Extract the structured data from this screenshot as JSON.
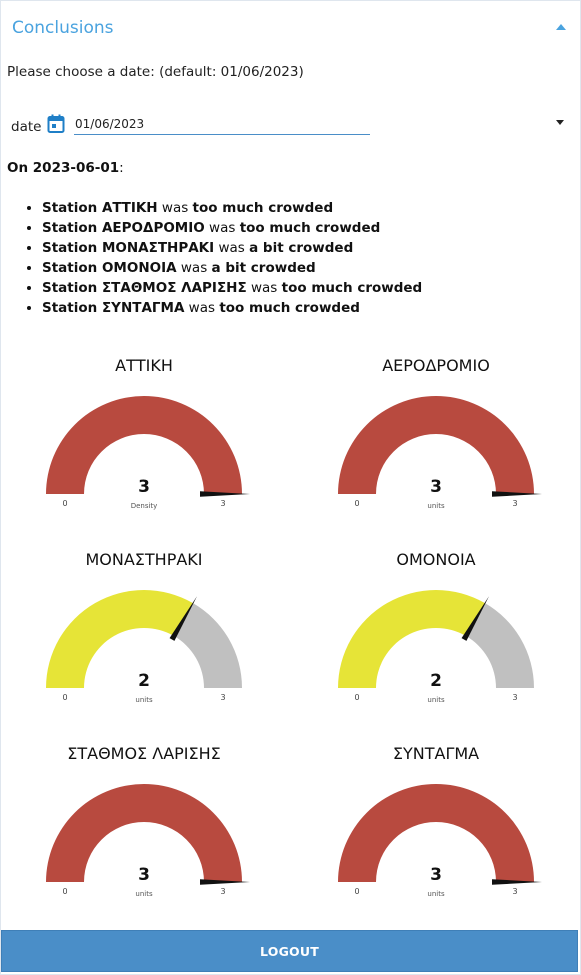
{
  "colors": {
    "accent": "#4aa3df",
    "button": "#4a8ec8",
    "red": "#b84a3f",
    "yellow": "#e6e437",
    "grey": "#c0c0c0"
  },
  "panel": {
    "title": "Conclusions",
    "collapse_icon": "chevron-up-icon"
  },
  "prompt": "Please choose a date: (default: 01/06/2023)",
  "date_field": {
    "label": "date",
    "value": "01/06/2023",
    "icon": "calendar-icon"
  },
  "summary": {
    "on_prefix": "On 2023-06-01",
    "on_suffix": ":",
    "items": [
      {
        "station": "Station ΑΤΤΙΚΗ",
        "was": " was ",
        "level": "too much crowded"
      },
      {
        "station": "Station ΑΕΡΟΔΡΟΜΙΟ",
        "was": " was ",
        "level": "too much crowded"
      },
      {
        "station": "Station ΜΟΝΑΣΤΗΡΑΚΙ",
        "was": " was ",
        "level": "a bit crowded"
      },
      {
        "station": "Station ΟΜΟΝΟΙΑ",
        "was": " was ",
        "level": "a bit crowded"
      },
      {
        "station": "Station ΣΤΑΘΜΟΣ ΛΑΡΙΣΗΣ",
        "was": " was ",
        "level": "too much crowded"
      },
      {
        "station": "Station ΣΥΝΤΑΓΜΑ",
        "was": " was ",
        "level": "too much crowded"
      }
    ]
  },
  "gauges": [
    {
      "title": "ΑΤΤΙΚΗ",
      "value": 3,
      "min": 0,
      "max": 3,
      "unit": "Density",
      "color": "#b84a3f"
    },
    {
      "title": "ΑΕΡΟΔΡΟΜΙΟ",
      "value": 3,
      "min": 0,
      "max": 3,
      "unit": "units",
      "color": "#b84a3f"
    },
    {
      "title": "ΜΟΝΑΣΤΗΡΑΚΙ",
      "value": 2,
      "min": 0,
      "max": 3,
      "unit": "units",
      "color": "#e6e437"
    },
    {
      "title": "ΟΜΟΝΟΙΑ",
      "value": 2,
      "min": 0,
      "max": 3,
      "unit": "units",
      "color": "#e6e437"
    },
    {
      "title": "ΣΤΑΘΜΟΣ ΛΑΡΙΣΗΣ",
      "value": 3,
      "min": 0,
      "max": 3,
      "unit": "units",
      "color": "#b84a3f"
    },
    {
      "title": "ΣΥΝΤΑΓΜΑ",
      "value": 3,
      "min": 0,
      "max": 3,
      "unit": "units",
      "color": "#b84a3f"
    }
  ],
  "logout_label": "LOGOUT"
}
